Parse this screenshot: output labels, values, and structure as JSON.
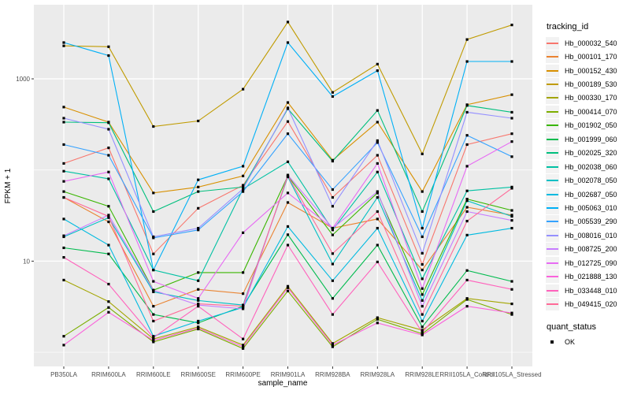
{
  "chart_data": {
    "type": "line",
    "title": "",
    "xlabel": "sample_name",
    "ylabel": "FPKM + 1",
    "y_scale": "log10",
    "ylim": [
      0.7,
      6500
    ],
    "y_major_ticks": [
      10,
      1000
    ],
    "y_tick_labels": [
      "10",
      "1000"
    ],
    "y_minor_gridlines": [
      1,
      100
    ],
    "grid": "on",
    "legend_position": "right",
    "panel_bg": "#EBEBEB",
    "grid_color": "#FFFFFF",
    "tick_text_color": "#4D4D4D",
    "axis_title_color": "#000000",
    "point_color": "#000000",
    "legend_title": "tracking_id",
    "legend2_title": "quant_status",
    "legend2_items": [
      "OK"
    ],
    "categories": [
      "PB350LA",
      "RRIM600LA",
      "RRIM600LE",
      "RRIM600SE",
      "RRIM600PE",
      "RRIM901LA",
      "RRIM928BA",
      "RRIM928LA",
      "RRIM928LE",
      "RRII105LA_Control",
      "RRII105LA_Stressed"
    ],
    "series": [
      {
        "name": "Hb_000032_540",
        "color": "#F8766D",
        "values": [
          118,
          175,
          12,
          38,
          68,
          340,
          50,
          145,
          9.2,
          190,
          250
        ]
      },
      {
        "name": "Hb_000101_170",
        "color": "#EA8331",
        "values": [
          50,
          27,
          3.2,
          4.9,
          4.4,
          44,
          23,
          29,
          8,
          39,
          32
        ]
      },
      {
        "name": "Hb_000152_430",
        "color": "#D89000",
        "values": [
          490,
          335,
          56,
          65,
          86,
          550,
          128,
          335,
          58,
          520,
          670
        ]
      },
      {
        "name": "Hb_000189_530",
        "color": "#C09B00",
        "values": [
          2300,
          2250,
          300,
          345,
          770,
          4200,
          710,
          1450,
          150,
          2700,
          3900
        ]
      },
      {
        "name": "Hb_000330_170",
        "color": "#A3A500",
        "values": [
          6.2,
          3.6,
          1.4,
          1.9,
          1.2,
          5.3,
          1.25,
          2.4,
          1.75,
          3.9,
          3.4
        ]
      },
      {
        "name": "Hb_000414_070",
        "color": "#7CAE00",
        "values": [
          1.5,
          3.1,
          1.3,
          1.8,
          1.1,
          4.7,
          1.15,
          2.3,
          1.6,
          3.8,
          2.6
        ]
      },
      {
        "name": "Hb_001902_050",
        "color": "#39B600",
        "values": [
          58,
          40,
          4.8,
          7.5,
          7.5,
          86,
          19.4,
          56,
          4.3,
          48,
          36
        ]
      },
      {
        "name": "Hb_001999_060",
        "color": "#00BB4E",
        "values": [
          14,
          12,
          2.6,
          2.1,
          3.2,
          19.5,
          3.9,
          15,
          1.9,
          7.9,
          6
        ]
      },
      {
        "name": "Hb_002025_320",
        "color": "#00BF7D",
        "values": [
          335,
          330,
          35,
          58,
          65,
          470,
          125,
          450,
          35,
          510,
          430
        ]
      },
      {
        "name": "Hb_002038_060",
        "color": "#00C1A3",
        "values": [
          97,
          80,
          8,
          6.1,
          62,
          123,
          22,
          95,
          6.4,
          59,
          65
        ]
      },
      {
        "name": "Hb_002078_050",
        "color": "#00BFC4",
        "values": [
          18.5,
          30,
          4.6,
          3.7,
          3.3,
          84,
          9.3,
          50,
          3.7,
          46,
          31
        ]
      },
      {
        "name": "Hb_002687_050",
        "color": "#00BAE0",
        "values": [
          29,
          15,
          1.5,
          2.2,
          3.1,
          24,
          6.1,
          23,
          2.2,
          19.3,
          23
        ]
      },
      {
        "name": "Hb_005063_010",
        "color": "#00B0F6",
        "values": [
          2500,
          1800,
          8,
          78,
          110,
          2500,
          640,
          1230,
          23,
          1550,
          1550
        ]
      },
      {
        "name": "Hb_005539_290",
        "color": "#35A2FF",
        "values": [
          190,
          145,
          18,
          22,
          58,
          250,
          61,
          200,
          18.5,
          240,
          140
        ]
      },
      {
        "name": "Hb_008016_010",
        "color": "#9590FF",
        "values": [
          370,
          280,
          18.5,
          23,
          62,
          480,
          40,
          210,
          12.2,
          430,
          370
        ]
      },
      {
        "name": "Hb_008725_200",
        "color": "#C77CFF",
        "values": [
          19,
          32,
          4.8,
          3.3,
          3,
          88,
          23,
          58,
          3.2,
          35,
          28
        ]
      },
      {
        "name": "Hb_012725_090",
        "color": "#E76BF3",
        "values": [
          75,
          95,
          6,
          3.9,
          20.5,
          56,
          23,
          118,
          5,
          110,
          205
        ]
      },
      {
        "name": "Hb_021888_130",
        "color": "#FA62DB",
        "values": [
          1.2,
          2.75,
          1.35,
          1.85,
          1.15,
          5.1,
          1.2,
          2.1,
          1.55,
          3.2,
          2.7
        ]
      },
      {
        "name": "Hb_033448_010",
        "color": "#FF62BC",
        "values": [
          11,
          5.6,
          1.45,
          3.2,
          1.4,
          15,
          2.6,
          9.8,
          1.65,
          6.2,
          4.9
        ]
      },
      {
        "name": "Hb_049415_020",
        "color": "#FF6A98",
        "values": [
          50,
          31,
          2.2,
          3.4,
          3.2,
          86,
          12.1,
          35,
          2.6,
          27.5,
          63
        ]
      }
    ]
  }
}
